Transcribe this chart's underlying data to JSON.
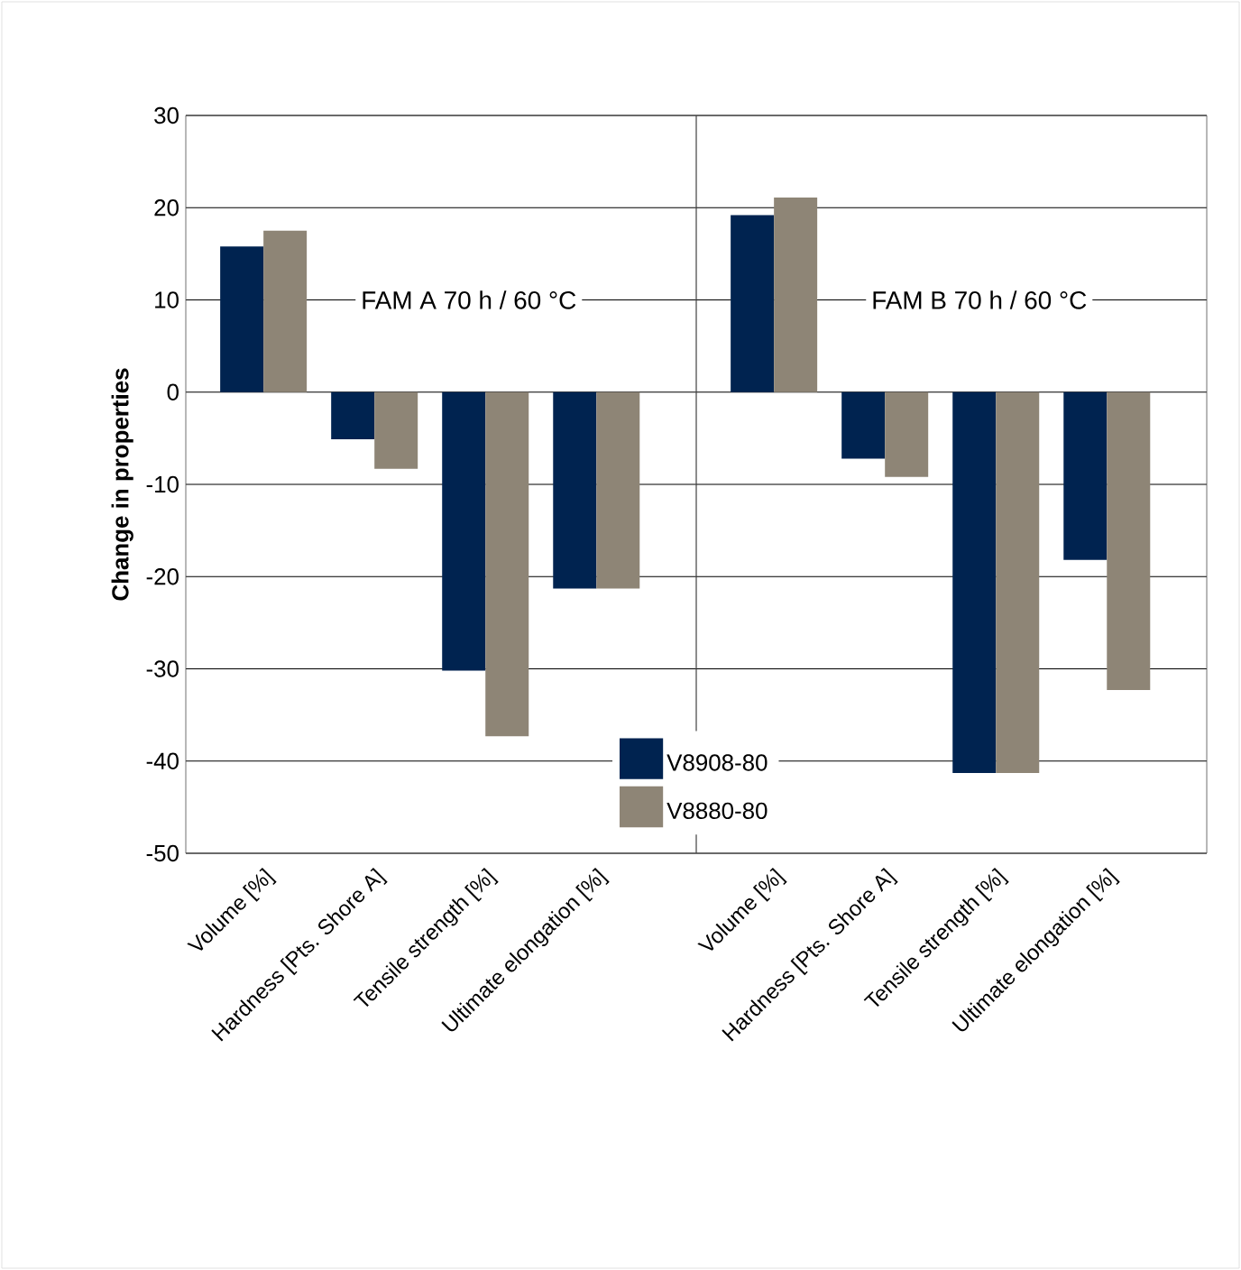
{
  "chart_data": [
    {
      "type": "bar",
      "ylabel": "Change in properties",
      "categories": [
        "Volume [%]",
        "Hardness [Pts. Shore A]",
        "Tensile strength [%]",
        "Ultimate elongation [%]"
      ],
      "series": [
        {
          "color": "#002350",
          "values": [
            15.8,
            -5.1,
            -30.2,
            -21.3
          ]
        },
        {
          "color": "#8e8576",
          "values": [
            17.5,
            -8.3,
            -37.3,
            -21.3
          ]
        }
      ],
      "annotations": [
        "FAM A 70 h / 60 °C"
      ],
      "ylim": [
        -50,
        30
      ],
      "yticks": [
        -50,
        -40,
        -30,
        -20,
        -10,
        0,
        10,
        20,
        30
      ],
      "grid": "y"
    },
    {
      "type": "bar",
      "categories": [
        "Volume [%]",
        "Hardness [Pts. Shore A]",
        "Tensile strength [%]",
        "Ultimate elongation [%]"
      ],
      "series": [
        {
          "name": "V8908-80",
          "color": "#002350",
          "values": [
            19.2,
            -7.2,
            -41.3,
            -18.2
          ]
        },
        {
          "name": "V8880-80",
          "color": "#8e8576",
          "values": [
            21.1,
            -9.2,
            -41.3,
            -32.3
          ]
        }
      ],
      "annotations": [
        "FAM B 70 h / 60 °C"
      ],
      "ylim": [
        -50,
        30
      ],
      "yticks": [
        -50,
        -40,
        -30,
        -20,
        -10,
        0,
        10,
        20,
        30
      ],
      "tick_labels": "x",
      "grid": "y",
      "legend": "bottom left"
    }
  ]
}
